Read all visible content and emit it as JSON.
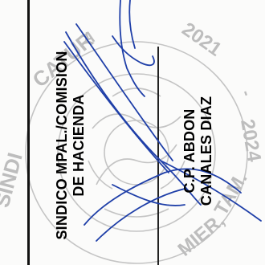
{
  "signature_block": {
    "role_line_1": "SINDICO MPAL./COMISION",
    "role_line_2": "DE HACIENDA",
    "name_line_1": "C.P. ABDON",
    "name_line_2": "CANALES DIAZ"
  },
  "seal": {
    "text_top": "2021 - 2024",
    "text_bottom": "MIER, TAM.",
    "text_left": "SINDICATURA",
    "color": "#b9b9b9"
  },
  "signature": {
    "ink_color": "#1f3fa8"
  }
}
